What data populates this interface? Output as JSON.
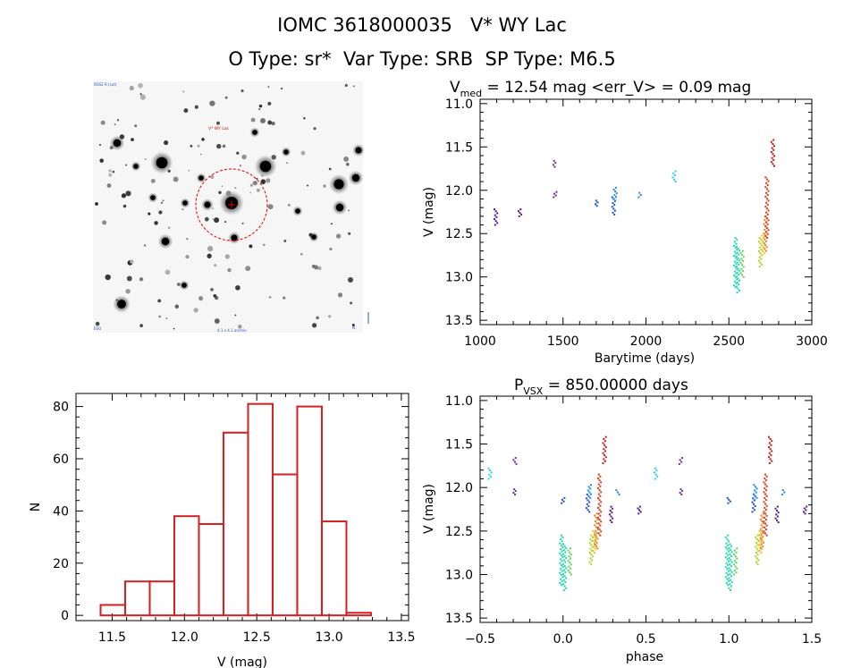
{
  "header": {
    "title": "IOMC 3618000035   V* WY Lac",
    "subtitle": "O Type: sr*  Var Type: SRB  SP Type: M6.5"
  },
  "image_panel": {
    "label_top_left": "DSS2 R (cut)",
    "label_marker": "V* WY Lac",
    "label_bottom_left": "ESO",
    "label_bottom_mid": "4.1 x 4.1 arcmin",
    "label_bottom_right": "N"
  },
  "colors": {
    "hist": "#d42020",
    "marker": "#e00000",
    "purple": "#5a1890",
    "violet": "#7030a0",
    "blue": "#2050c8",
    "azure": "#1e8ce8",
    "cyan": "#28d2e8",
    "teal": "#20d8b0",
    "green": "#5ad85a",
    "lime": "#a8d820",
    "yellow": "#e8c020",
    "orange": "#e88020",
    "red": "#d83c1c",
    "darkred": "#c01818"
  },
  "chart_data": [
    {
      "id": "lightcurve",
      "type": "scatter",
      "title_main": "V",
      "title_sub": "med",
      "title_rest": " = 12.54 mag <err_V> = 0.09 mag",
      "xlabel": "Barytime (days)",
      "ylabel": "V (mag)",
      "xlim": [
        1000,
        3000
      ],
      "ylim": [
        13.55,
        10.95
      ],
      "xticks": [
        1000,
        1500,
        2000,
        2500,
        3000
      ],
      "xtick_labels": [
        "1000",
        "1500",
        "2000",
        "2500",
        "3000"
      ],
      "yticks": [
        11.0,
        11.5,
        12.0,
        12.5,
        13.0,
        13.5
      ],
      "ytick_labels": [
        "11.0",
        "11.5",
        "12.0",
        "12.5",
        "13.0",
        "13.5"
      ],
      "groups": [
        {
          "color": "purple",
          "x": 1095,
          "y": [
            12.22,
            12.4
          ]
        },
        {
          "color": "purple",
          "x": 1240,
          "y": [
            12.22,
            12.3
          ]
        },
        {
          "color": "violet",
          "x": 1450,
          "y": [
            11.66,
            11.73
          ]
        },
        {
          "color": "violet",
          "x": 1452,
          "y": [
            12.02,
            12.08
          ]
        },
        {
          "color": "blue",
          "x": 1700,
          "y": [
            12.12,
            12.18
          ]
        },
        {
          "color": "blue",
          "x": 1805,
          "y": [
            12.08,
            12.28
          ]
        },
        {
          "color": "azure",
          "x": 1815,
          "y": [
            11.97,
            12.12
          ]
        },
        {
          "color": "azure",
          "x": 1965,
          "y": [
            12.03,
            12.08
          ]
        },
        {
          "color": "cyan",
          "x": 2170,
          "y": [
            11.78,
            11.9
          ]
        },
        {
          "color": "teal",
          "x": 2540,
          "y": [
            12.55,
            13.12
          ]
        },
        {
          "color": "teal",
          "x": 2555,
          "y": [
            12.65,
            13.18
          ]
        },
        {
          "color": "green",
          "x": 2580,
          "y": [
            12.7,
            13.0
          ]
        },
        {
          "color": "lime",
          "x": 2690,
          "y": [
            12.55,
            12.88
          ]
        },
        {
          "color": "yellow",
          "x": 2705,
          "y": [
            12.5,
            12.75
          ]
        },
        {
          "color": "orange",
          "x": 2720,
          "y": [
            12.3,
            12.7
          ]
        },
        {
          "color": "red",
          "x": 2730,
          "y": [
            11.85,
            12.55
          ]
        },
        {
          "color": "darkred",
          "x": 2765,
          "y": [
            11.42,
            11.72
          ]
        }
      ]
    },
    {
      "id": "histogram",
      "type": "bar",
      "title": "",
      "xlabel": "V (mag)",
      "ylabel": "N",
      "xlim": [
        11.25,
        13.55
      ],
      "ylim": [
        -2,
        85
      ],
      "xticks": [
        11.5,
        12.0,
        12.5,
        13.0,
        13.5
      ],
      "xtick_labels": [
        "11.5",
        "12.0",
        "12.5",
        "13.0",
        "13.5"
      ],
      "yticks": [
        0,
        20,
        40,
        60,
        80
      ],
      "ytick_labels": [
        "0",
        "20",
        "40",
        "60",
        "80"
      ],
      "bin_edges": [
        11.42,
        11.59,
        11.76,
        11.93,
        12.1,
        12.27,
        12.44,
        12.61,
        12.78,
        12.95,
        13.12,
        13.29
      ],
      "values": [
        4,
        13,
        13,
        38,
        35,
        70,
        81,
        54,
        80,
        36,
        1
      ]
    },
    {
      "id": "phased",
      "type": "scatter",
      "title_main": "P",
      "title_sub": "VSX",
      "title_rest": " = 850.00000 days",
      "xlabel": "phase",
      "ylabel": "V (mag)",
      "xlim": [
        -0.5,
        1.5
      ],
      "ylim": [
        13.55,
        10.95
      ],
      "xticks": [
        -0.5,
        0.0,
        0.5,
        1.0,
        1.5
      ],
      "xtick_labels": [
        "−0.5",
        "0.0",
        "0.5",
        "1.0",
        "1.5"
      ],
      "yticks": [
        11.0,
        11.5,
        12.0,
        12.5,
        13.0,
        13.5
      ],
      "ytick_labels": [
        "11.0",
        "11.5",
        "12.0",
        "12.5",
        "13.0",
        "13.5"
      ],
      "groups": [
        {
          "color": "cyan",
          "x": -0.44,
          "y": [
            11.78,
            11.9
          ]
        },
        {
          "color": "violet",
          "x": -0.29,
          "y": [
            11.66,
            11.73
          ]
        },
        {
          "color": "violet",
          "x": -0.29,
          "y": [
            12.02,
            12.08
          ]
        },
        {
          "color": "blue",
          "x": 0.0,
          "y": [
            12.12,
            12.18
          ]
        },
        {
          "color": "teal",
          "x": -0.01,
          "y": [
            12.55,
            13.12
          ]
        },
        {
          "color": "teal",
          "x": 0.01,
          "y": [
            12.65,
            13.18
          ]
        },
        {
          "color": "green",
          "x": 0.04,
          "y": [
            12.7,
            13.0
          ]
        },
        {
          "color": "blue",
          "x": 0.15,
          "y": [
            12.08,
            12.28
          ]
        },
        {
          "color": "azure",
          "x": 0.16,
          "y": [
            11.97,
            12.12
          ]
        },
        {
          "color": "lime",
          "x": 0.17,
          "y": [
            12.55,
            12.88
          ]
        },
        {
          "color": "yellow",
          "x": 0.19,
          "y": [
            12.5,
            12.75
          ]
        },
        {
          "color": "orange",
          "x": 0.2,
          "y": [
            12.3,
            12.7
          ]
        },
        {
          "color": "red",
          "x": 0.22,
          "y": [
            11.85,
            12.55
          ]
        },
        {
          "color": "darkred",
          "x": 0.25,
          "y": [
            11.42,
            11.72
          ]
        },
        {
          "color": "purple",
          "x": 0.29,
          "y": [
            12.22,
            12.4
          ]
        },
        {
          "color": "azure",
          "x": 0.33,
          "y": [
            12.03,
            12.08
          ]
        },
        {
          "color": "purple",
          "x": 0.46,
          "y": [
            12.22,
            12.3
          ]
        },
        {
          "color": "cyan",
          "x": 0.56,
          "y": [
            11.78,
            11.9
          ]
        },
        {
          "color": "violet",
          "x": 0.71,
          "y": [
            11.66,
            11.73
          ]
        },
        {
          "color": "violet",
          "x": 0.71,
          "y": [
            12.02,
            12.08
          ]
        },
        {
          "color": "blue",
          "x": 1.0,
          "y": [
            12.12,
            12.18
          ]
        },
        {
          "color": "teal",
          "x": 0.99,
          "y": [
            12.55,
            13.12
          ]
        },
        {
          "color": "teal",
          "x": 1.01,
          "y": [
            12.65,
            13.18
          ]
        },
        {
          "color": "green",
          "x": 1.04,
          "y": [
            12.7,
            13.0
          ]
        },
        {
          "color": "blue",
          "x": 1.15,
          "y": [
            12.08,
            12.28
          ]
        },
        {
          "color": "azure",
          "x": 1.16,
          "y": [
            11.97,
            12.12
          ]
        },
        {
          "color": "lime",
          "x": 1.17,
          "y": [
            12.55,
            12.88
          ]
        },
        {
          "color": "yellow",
          "x": 1.19,
          "y": [
            12.5,
            12.75
          ]
        },
        {
          "color": "orange",
          "x": 1.2,
          "y": [
            12.3,
            12.7
          ]
        },
        {
          "color": "red",
          "x": 1.22,
          "y": [
            11.85,
            12.55
          ]
        },
        {
          "color": "darkred",
          "x": 1.25,
          "y": [
            11.42,
            11.72
          ]
        },
        {
          "color": "purple",
          "x": 1.29,
          "y": [
            12.22,
            12.4
          ]
        },
        {
          "color": "azure",
          "x": 1.33,
          "y": [
            12.03,
            12.08
          ]
        },
        {
          "color": "purple",
          "x": 1.46,
          "y": [
            12.22,
            12.3
          ]
        }
      ]
    }
  ]
}
